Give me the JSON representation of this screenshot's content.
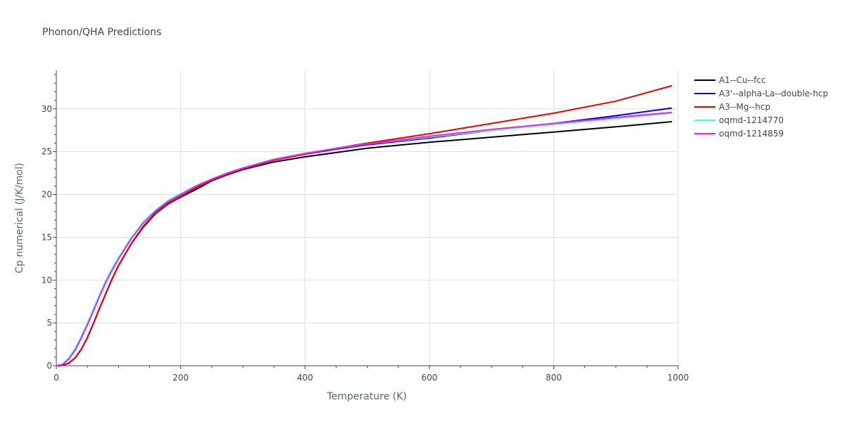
{
  "chart_data": {
    "type": "line",
    "title": "Phonon/QHA Predictions",
    "xlabel": "Temperature (K)",
    "ylabel": "Cp numerical (J/K/mol)",
    "xlim": [
      0,
      1000
    ],
    "ylim": [
      0,
      34.5
    ],
    "xticks": [
      0,
      200,
      400,
      600,
      800,
      1000
    ],
    "yticks": [
      0,
      5,
      10,
      15,
      20,
      25,
      30
    ],
    "grid": true,
    "legend_position": "top-right",
    "series": [
      {
        "name": "A1--Cu--fcc",
        "color": "#000000",
        "x": [
          0,
          10,
          20,
          30,
          40,
          50,
          60,
          70,
          80,
          90,
          100,
          120,
          140,
          160,
          180,
          200,
          225,
          250,
          275,
          300,
          350,
          400,
          450,
          500,
          600,
          700,
          800,
          900,
          990
        ],
        "y": [
          0,
          0.05,
          0.3,
          0.9,
          1.9,
          3.3,
          5.0,
          6.8,
          8.5,
          10.2,
          11.7,
          14.2,
          16.2,
          17.8,
          18.9,
          19.7,
          20.6,
          21.6,
          22.3,
          22.9,
          23.8,
          24.4,
          24.9,
          25.4,
          26.1,
          26.7,
          27.3,
          27.9,
          28.5
        ]
      },
      {
        "name": "A3'--alpha-La--double-hcp",
        "color": "#0000ee",
        "x": [
          0,
          10,
          20,
          30,
          40,
          50,
          60,
          70,
          80,
          90,
          100,
          120,
          140,
          160,
          180,
          200,
          225,
          250,
          275,
          300,
          350,
          400,
          450,
          500,
          600,
          700,
          800,
          900,
          990
        ],
        "y": [
          0,
          0.05,
          0.3,
          0.9,
          1.9,
          3.3,
          5.0,
          6.8,
          8.5,
          10.2,
          11.7,
          14.2,
          16.3,
          17.9,
          19.0,
          19.8,
          20.8,
          21.7,
          22.4,
          23.0,
          24.0,
          24.7,
          25.3,
          25.8,
          26.6,
          27.5,
          28.3,
          29.2,
          30.1
        ]
      },
      {
        "name": "A3--Mg--hcp",
        "color": "#ee0000",
        "x": [
          0,
          10,
          20,
          30,
          40,
          50,
          60,
          70,
          80,
          90,
          100,
          120,
          140,
          160,
          180,
          200,
          225,
          250,
          275,
          300,
          350,
          400,
          450,
          500,
          600,
          700,
          800,
          900,
          990
        ],
        "y": [
          0,
          0.05,
          0.3,
          0.9,
          1.9,
          3.3,
          5.0,
          6.8,
          8.5,
          10.2,
          11.7,
          14.2,
          16.3,
          17.9,
          19.0,
          19.8,
          20.8,
          21.7,
          22.4,
          23.0,
          24.0,
          24.7,
          25.4,
          26.0,
          27.1,
          28.3,
          29.5,
          30.9,
          32.7
        ]
      },
      {
        "name": "oqmd-1214770",
        "color": "#33ffff",
        "x": [
          0,
          10,
          20,
          30,
          40,
          50,
          60,
          70,
          80,
          90,
          100,
          120,
          140,
          160,
          180,
          200,
          225,
          250,
          275,
          300,
          350,
          400,
          450,
          500,
          600,
          700,
          800,
          900,
          990
        ],
        "y": [
          0,
          0.2,
          0.9,
          2.0,
          3.4,
          5.0,
          6.7,
          8.4,
          10.0,
          11.4,
          12.6,
          14.9,
          16.8,
          18.2,
          19.3,
          20.1,
          21.0,
          21.8,
          22.5,
          23.1,
          24.1,
          24.8,
          25.4,
          25.9,
          26.7,
          27.5,
          28.2,
          28.9,
          29.5
        ]
      },
      {
        "name": "oqmd-1214859",
        "color": "#ee22ee",
        "x": [
          0,
          10,
          20,
          30,
          40,
          50,
          60,
          70,
          80,
          90,
          100,
          120,
          140,
          160,
          180,
          200,
          225,
          250,
          275,
          300,
          350,
          400,
          450,
          500,
          600,
          700,
          800,
          900,
          990
        ],
        "y": [
          0,
          0.15,
          0.8,
          1.8,
          3.2,
          4.8,
          6.5,
          8.2,
          9.8,
          11.2,
          12.5,
          14.8,
          16.7,
          18.1,
          19.2,
          20.0,
          21.0,
          21.8,
          22.5,
          23.1,
          24.1,
          24.8,
          25.4,
          25.9,
          26.8,
          27.6,
          28.3,
          29.0,
          29.6
        ]
      }
    ]
  }
}
